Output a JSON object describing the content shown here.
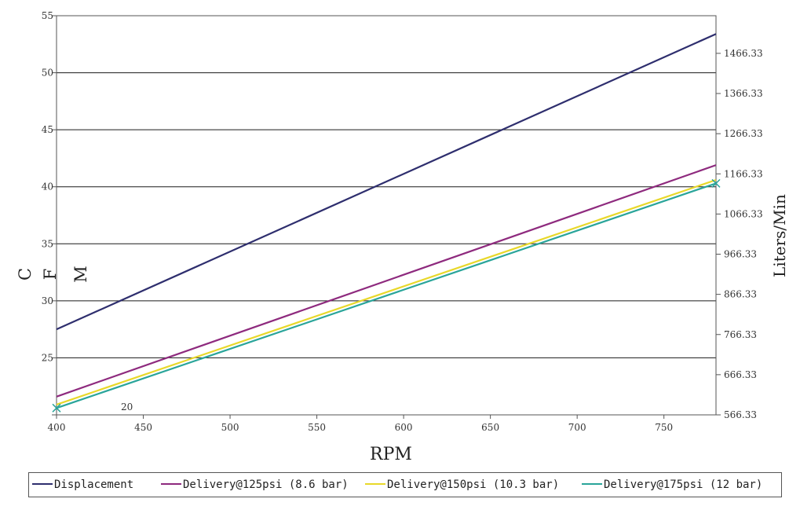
{
  "chart_data": {
    "type": "line",
    "xlabel": "RPM",
    "ylabel_left_letters": [
      "C",
      "F",
      "M"
    ],
    "ylabel_right": "Liters/Min",
    "x_ticks": [
      "400",
      "450",
      "500",
      "550",
      "600",
      "650",
      "700",
      "750"
    ],
    "y_left_ticks": [
      "20",
      "25",
      "30",
      "35",
      "40",
      "45",
      "50",
      "55"
    ],
    "y_right_ticks": [
      "566.33",
      "666.33",
      "766.33",
      "866.33",
      "966.33",
      "1066.33",
      "1166.33",
      "1266.33",
      "1366.33",
      "1466.33"
    ],
    "xlim": [
      400,
      780
    ],
    "ylim_left": [
      20,
      55
    ],
    "ylim_right": [
      566.33,
      1560
    ],
    "grid": "horizontal",
    "legend_position": "bottom",
    "series": [
      {
        "name": "Displacement",
        "color": "#2e2e6e",
        "x": [
          400,
          780
        ],
        "y": [
          27.5,
          53.4
        ]
      },
      {
        "name": "Delivery@125psi (8.6 bar)",
        "color": "#8e2a7e",
        "x": [
          400,
          780
        ],
        "y": [
          21.6,
          41.9
        ]
      },
      {
        "name": "Delivery@150psi (10.3 bar)",
        "color": "#e8d82a",
        "x": [
          400,
          780
        ],
        "y": [
          20.9,
          40.6
        ]
      },
      {
        "name": "Delivery@175psi (12 bar)",
        "color": "#2aa59a",
        "x": [
          400,
          780
        ],
        "y": [
          20.6,
          40.3
        ]
      }
    ]
  }
}
